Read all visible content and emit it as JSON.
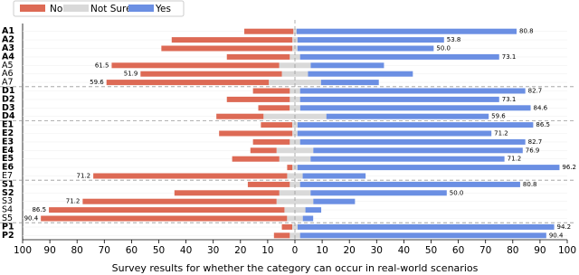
{
  "chart_data": {
    "type": "diverging-bar",
    "xlabel": "Survey results for whether the category can occur in real-world scenarios",
    "categories": [
      "A1",
      "A2",
      "A3",
      "A4",
      "A5",
      "A6",
      "A7",
      "D1",
      "D2",
      "D3",
      "D4",
      "E1",
      "E2",
      "E3",
      "E4",
      "E5",
      "E6",
      "E7",
      "S1",
      "S2",
      "S3",
      "S4",
      "S5",
      "P1",
      "P2"
    ],
    "category_styles": [
      "bold",
      "bold",
      "bold",
      "bold",
      "muted",
      "muted",
      "muted",
      "bold",
      "bold",
      "bold",
      "bold",
      "bold",
      "bold",
      "bold",
      "bold",
      "bold",
      "bold",
      "muted",
      "bold",
      "bold",
      "muted",
      "muted",
      "muted",
      "bold",
      "bold"
    ],
    "series": [
      {
        "name": "No",
        "color": "#dd6a55",
        "side": "left",
        "values": [
          18,
          44.3,
          48.1,
          23.1,
          61.5,
          51.9,
          59.6,
          13.5,
          23.1,
          11.5,
          17.3,
          11.5,
          26.9,
          13.5,
          9.6,
          17.3,
          1.9,
          71.2,
          15.4,
          38.5,
          71.2,
          86.5,
          90.4,
          3.8,
          5.8
        ],
        "value_labels": [
          null,
          null,
          null,
          null,
          "61.5",
          "51.9",
          "59.6",
          null,
          null,
          null,
          null,
          null,
          null,
          null,
          null,
          null,
          null,
          "71.2",
          null,
          null,
          "71.2",
          "86.5",
          "90.4",
          null,
          null
        ]
      },
      {
        "name": "Not Sure",
        "color": "#d9d9d9",
        "side": "center",
        "values": [
          1.2,
          1.9,
          1.9,
          3.8,
          11.6,
          9.6,
          19.2,
          3.8,
          3.8,
          3.9,
          23.1,
          2.0,
          1.9,
          3.8,
          13.5,
          11.5,
          1.9,
          5.7,
          3.8,
          11.5,
          13.5,
          7.7,
          5.8,
          2.0,
          3.8
        ]
      },
      {
        "name": "Yes",
        "color": "#6b8fe3",
        "side": "right",
        "values": [
          80.8,
          53.8,
          50.0,
          73.1,
          26.9,
          38.5,
          21.2,
          82.7,
          73.1,
          84.6,
          59.6,
          86.5,
          71.2,
          82.7,
          76.9,
          71.2,
          96.2,
          23.1,
          80.8,
          50.0,
          15.3,
          5.8,
          3.8,
          94.2,
          90.4
        ],
        "value_labels": [
          "80.8",
          "53.8",
          "50.0",
          "73.1",
          null,
          null,
          null,
          "82.7",
          "73.1",
          "84.6",
          "59.6",
          "86.5",
          "71.2",
          "82.7",
          "76.9",
          "71.2",
          "96.2",
          null,
          "80.8",
          "50.0",
          null,
          null,
          null,
          "94.2",
          "90.4"
        ]
      }
    ],
    "xlim": [
      -100,
      100
    ],
    "xticks": [
      {
        "value": -100,
        "label": "100"
      },
      {
        "value": -90,
        "label": "90"
      },
      {
        "value": -80,
        "label": "80"
      },
      {
        "value": -70,
        "label": "70"
      },
      {
        "value": -60,
        "label": "60"
      },
      {
        "value": -50,
        "label": "50"
      },
      {
        "value": -40,
        "label": "40"
      },
      {
        "value": -30,
        "label": "30"
      },
      {
        "value": -20,
        "label": "20"
      },
      {
        "value": -10,
        "label": "10"
      },
      0,
      10,
      20,
      30,
      40,
      50,
      60,
      70,
      80,
      90,
      100
    ],
    "legend": "upper left"
  }
}
